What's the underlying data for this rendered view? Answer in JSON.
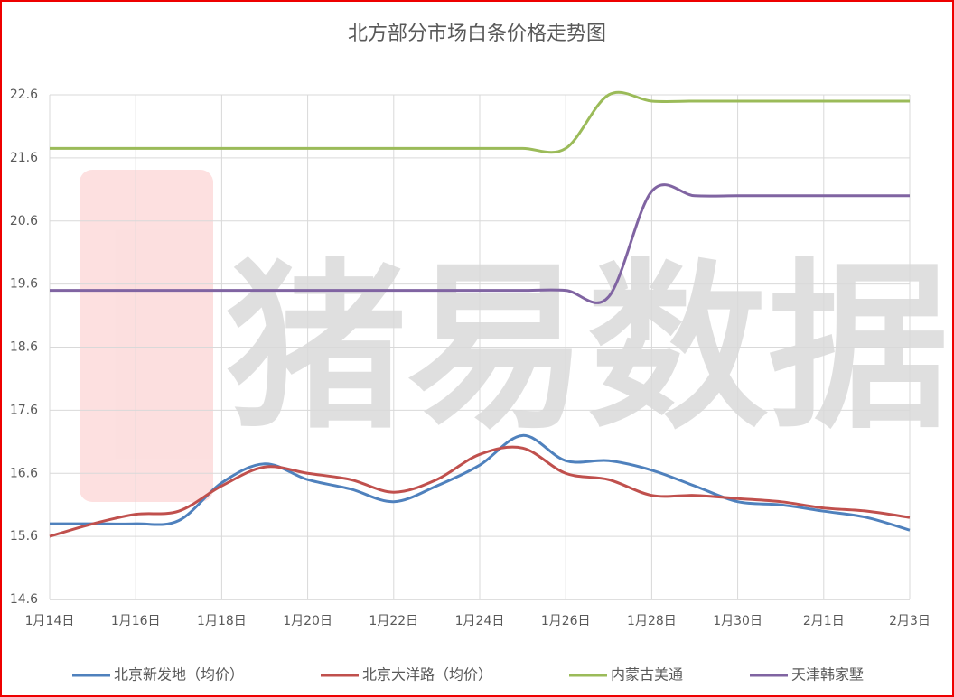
{
  "chart_data": {
    "type": "line",
    "title": "北方部分市场白条价格走势图",
    "categories": [
      "1月14日",
      null,
      "1月16日",
      null,
      "1月18日",
      null,
      "1月20日",
      null,
      "1月22日",
      null,
      "1月24日",
      null,
      "1月26日",
      null,
      "1月28日",
      null,
      "1月30日",
      null,
      "2月1日",
      null,
      "2月3日"
    ],
    "series": [
      {
        "name": "北京新发地（均价）",
        "color": "#4f81bd",
        "values": [
          15.8,
          15.8,
          15.8,
          15.85,
          16.45,
          16.75,
          16.5,
          16.35,
          16.15,
          16.4,
          16.73,
          17.2,
          16.8,
          16.8,
          16.65,
          16.4,
          16.15,
          16.1,
          16.0,
          15.9,
          15.7
        ]
      },
      {
        "name": "北京大洋路（均价）",
        "color": "#c0504d",
        "values": [
          15.6,
          15.8,
          15.95,
          16.0,
          16.4,
          16.7,
          16.6,
          16.5,
          16.3,
          16.5,
          16.9,
          17.0,
          16.6,
          16.5,
          16.25,
          16.25,
          16.2,
          16.15,
          16.05,
          16.0,
          15.9
        ]
      },
      {
        "name": "内蒙古美通",
        "color": "#9bbb59",
        "values": [
          21.75,
          21.75,
          21.75,
          21.75,
          21.75,
          21.75,
          21.75,
          21.75,
          21.75,
          21.75,
          21.75,
          21.75,
          21.75,
          22.6,
          22.5,
          22.5,
          22.5,
          22.5,
          22.5,
          22.5,
          22.5
        ]
      },
      {
        "name": "天津韩家墅",
        "color": "#8064a2",
        "values": [
          19.5,
          19.5,
          19.5,
          19.5,
          19.5,
          19.5,
          19.5,
          19.5,
          19.5,
          19.5,
          19.5,
          19.5,
          19.5,
          19.4,
          21.07,
          21.0,
          21.0,
          21.0,
          21.0,
          21.0,
          21.0
        ]
      }
    ],
    "ylim": [
      14.6,
      22.6
    ],
    "yticks": [
      14.6,
      15.6,
      16.6,
      17.6,
      18.6,
      19.6,
      20.6,
      21.6,
      22.6
    ],
    "grid": true
  }
}
